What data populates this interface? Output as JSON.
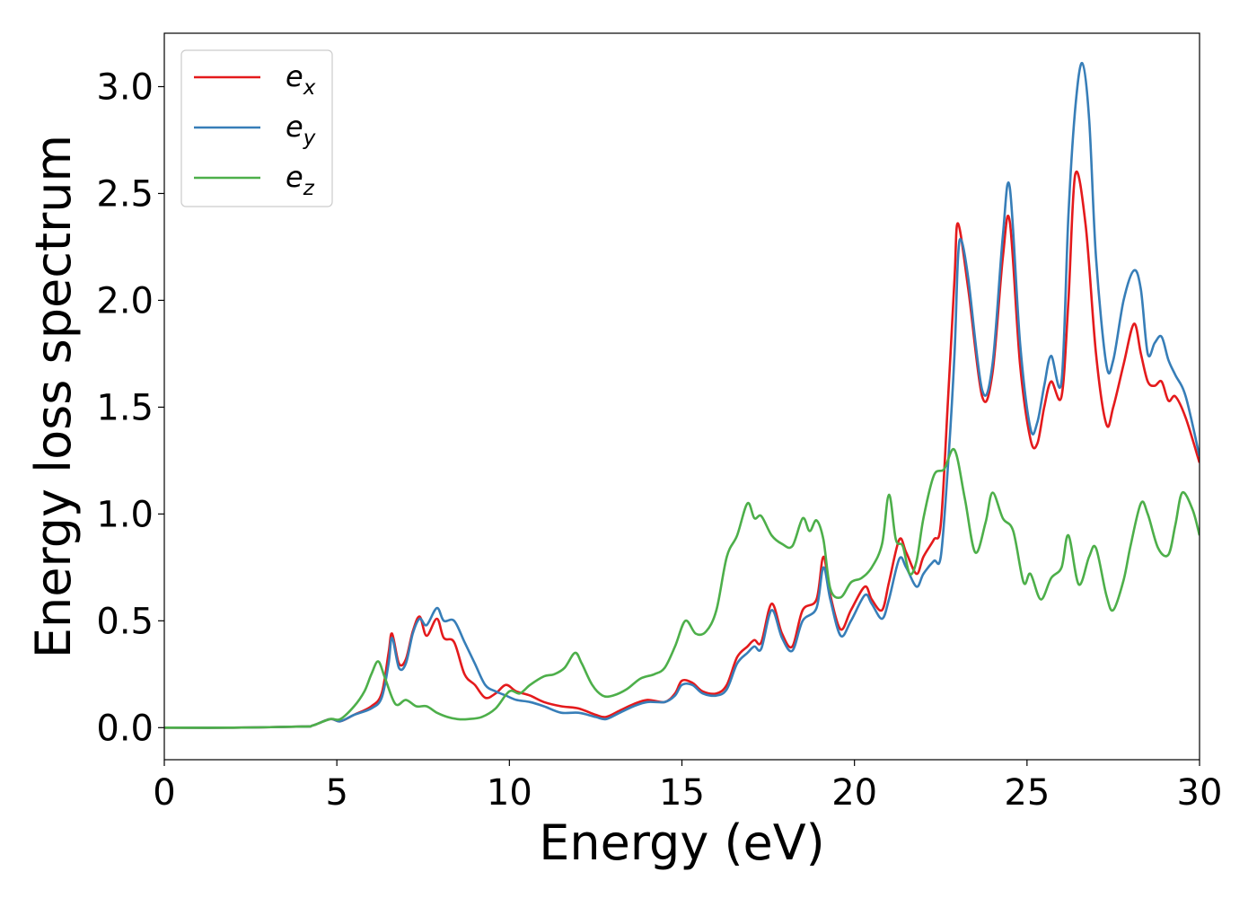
{
  "chart_data": {
    "type": "line",
    "title": "",
    "xlabel": "Energy (eV)",
    "ylabel": "Energy loss spectrum",
    "xlim": [
      0,
      30
    ],
    "ylim": [
      -0.15,
      3.25
    ],
    "xticks": [
      "0",
      "5",
      "10",
      "15",
      "20",
      "25",
      "30"
    ],
    "xtick_values": [
      0,
      5,
      10,
      15,
      20,
      25,
      30
    ],
    "yticks": [
      "0.0",
      "0.5",
      "1.0",
      "1.5",
      "2.0",
      "2.5",
      "3.0"
    ],
    "ytick_values": [
      0,
      0.5,
      1.0,
      1.5,
      2.0,
      2.5,
      3.0
    ],
    "grid": false,
    "legend_position": "top-left",
    "series": [
      {
        "name": "e_x",
        "legend_base": "e",
        "legend_sub": "x",
        "color": "#e41a1c",
        "x": [
          0,
          2,
          4,
          4.3,
          4.8,
          5.1,
          5.5,
          6.0,
          6.3,
          6.5,
          6.6,
          6.8,
          7.0,
          7.2,
          7.4,
          7.6,
          7.9,
          8.1,
          8.4,
          8.7,
          9.0,
          9.3,
          9.6,
          9.9,
          10.2,
          10.6,
          11.0,
          11.5,
          12.0,
          12.5,
          12.8,
          13.2,
          13.6,
          14.0,
          14.5,
          14.8,
          15.0,
          15.3,
          15.6,
          16.0,
          16.3,
          16.6,
          16.9,
          17.1,
          17.3,
          17.6,
          17.9,
          18.2,
          18.5,
          18.9,
          19.1,
          19.3,
          19.6,
          19.9,
          20.3,
          20.5,
          20.8,
          21.0,
          21.3,
          21.5,
          21.8,
          22.0,
          22.3,
          22.5,
          22.7,
          22.9,
          23.0,
          23.3,
          23.7,
          24.0,
          24.3,
          24.5,
          24.8,
          25.1,
          25.3,
          25.5,
          25.7,
          26.0,
          26.2,
          26.4,
          26.7,
          27.0,
          27.3,
          27.5,
          27.8,
          28.1,
          28.3,
          28.5,
          28.7,
          28.9,
          29.1,
          29.3,
          29.6,
          30.0
        ],
        "y": [
          0.0,
          0.0,
          0.005,
          0.01,
          0.04,
          0.03,
          0.06,
          0.1,
          0.16,
          0.35,
          0.44,
          0.3,
          0.32,
          0.45,
          0.52,
          0.43,
          0.51,
          0.42,
          0.4,
          0.25,
          0.2,
          0.14,
          0.16,
          0.2,
          0.17,
          0.15,
          0.12,
          0.1,
          0.09,
          0.06,
          0.05,
          0.08,
          0.11,
          0.13,
          0.12,
          0.16,
          0.22,
          0.21,
          0.17,
          0.16,
          0.2,
          0.33,
          0.38,
          0.41,
          0.4,
          0.58,
          0.44,
          0.38,
          0.55,
          0.6,
          0.8,
          0.62,
          0.46,
          0.55,
          0.66,
          0.6,
          0.55,
          0.68,
          0.88,
          0.82,
          0.72,
          0.8,
          0.88,
          0.95,
          1.5,
          2.1,
          2.36,
          2.05,
          1.55,
          1.66,
          2.2,
          2.37,
          1.7,
          1.35,
          1.33,
          1.5,
          1.62,
          1.55,
          2.0,
          2.59,
          2.35,
          1.75,
          1.42,
          1.5,
          1.7,
          1.89,
          1.75,
          1.62,
          1.6,
          1.62,
          1.53,
          1.55,
          1.45,
          1.24
        ]
      },
      {
        "name": "e_y",
        "legend_base": "e",
        "legend_sub": "y",
        "color": "#377eb8",
        "x": [
          0,
          2,
          4,
          4.3,
          4.8,
          5.1,
          5.5,
          6.0,
          6.3,
          6.5,
          6.6,
          6.8,
          7.0,
          7.2,
          7.4,
          7.6,
          7.9,
          8.1,
          8.4,
          8.7,
          9.0,
          9.3,
          9.6,
          9.9,
          10.2,
          10.6,
          11.0,
          11.5,
          12.0,
          12.5,
          12.8,
          13.2,
          13.6,
          14.0,
          14.5,
          14.8,
          15.0,
          15.3,
          15.6,
          16.0,
          16.3,
          16.6,
          16.9,
          17.1,
          17.3,
          17.6,
          17.9,
          18.2,
          18.5,
          18.9,
          19.1,
          19.3,
          19.6,
          19.9,
          20.3,
          20.5,
          20.8,
          21.0,
          21.3,
          21.5,
          21.8,
          22.0,
          22.3,
          22.5,
          22.7,
          22.9,
          23.0,
          23.1,
          23.3,
          23.7,
          24.0,
          24.3,
          24.5,
          24.8,
          25.1,
          25.3,
          25.5,
          25.7,
          26.0,
          26.2,
          26.4,
          26.6,
          26.8,
          27.0,
          27.3,
          27.5,
          27.8,
          28.1,
          28.3,
          28.5,
          28.7,
          28.9,
          29.1,
          29.3,
          29.6,
          30.0
        ],
        "y": [
          0.0,
          0.0,
          0.005,
          0.01,
          0.04,
          0.03,
          0.06,
          0.09,
          0.14,
          0.3,
          0.42,
          0.28,
          0.3,
          0.44,
          0.51,
          0.48,
          0.56,
          0.5,
          0.5,
          0.4,
          0.3,
          0.2,
          0.17,
          0.15,
          0.13,
          0.12,
          0.1,
          0.07,
          0.07,
          0.05,
          0.04,
          0.07,
          0.1,
          0.12,
          0.12,
          0.15,
          0.2,
          0.2,
          0.16,
          0.15,
          0.18,
          0.3,
          0.35,
          0.38,
          0.37,
          0.55,
          0.42,
          0.36,
          0.5,
          0.56,
          0.75,
          0.6,
          0.43,
          0.5,
          0.62,
          0.58,
          0.51,
          0.6,
          0.79,
          0.75,
          0.66,
          0.72,
          0.78,
          0.8,
          1.2,
          1.75,
          2.2,
          2.28,
          2.1,
          1.58,
          1.7,
          2.3,
          2.53,
          1.8,
          1.4,
          1.43,
          1.6,
          1.74,
          1.62,
          2.4,
          2.9,
          3.11,
          2.85,
          2.2,
          1.7,
          1.72,
          2.0,
          2.14,
          2.05,
          1.75,
          1.8,
          1.83,
          1.72,
          1.65,
          1.55,
          1.27
        ]
      },
      {
        "name": "e_z",
        "legend_base": "e",
        "legend_sub": "z",
        "color": "#4daf4a",
        "x": [
          0,
          2,
          4,
          4.3,
          4.8,
          5.1,
          5.5,
          5.8,
          6.0,
          6.2,
          6.4,
          6.7,
          7.0,
          7.3,
          7.6,
          7.9,
          8.2,
          8.5,
          8.8,
          9.2,
          9.6,
          10.0,
          10.3,
          10.6,
          11.0,
          11.3,
          11.6,
          11.9,
          12.1,
          12.4,
          12.7,
          13.0,
          13.4,
          13.8,
          14.2,
          14.5,
          14.8,
          15.1,
          15.4,
          15.7,
          16.0,
          16.3,
          16.6,
          16.9,
          17.1,
          17.3,
          17.6,
          17.9,
          18.2,
          18.5,
          18.7,
          18.9,
          19.1,
          19.3,
          19.6,
          19.9,
          20.2,
          20.5,
          20.8,
          21.0,
          21.2,
          21.4,
          21.6,
          21.8,
          22.0,
          22.3,
          22.6,
          22.9,
          23.2,
          23.5,
          23.8,
          24.0,
          24.3,
          24.6,
          24.9,
          25.1,
          25.4,
          25.7,
          26.0,
          26.2,
          26.5,
          26.8,
          27.0,
          27.3,
          27.5,
          27.8,
          28.0,
          28.3,
          28.5,
          28.8,
          29.1,
          29.3,
          29.5,
          29.8,
          30.0
        ],
        "y": [
          0.0,
          0.0,
          0.005,
          0.01,
          0.04,
          0.04,
          0.1,
          0.17,
          0.25,
          0.31,
          0.23,
          0.11,
          0.13,
          0.1,
          0.1,
          0.07,
          0.05,
          0.04,
          0.04,
          0.05,
          0.09,
          0.17,
          0.16,
          0.2,
          0.24,
          0.25,
          0.28,
          0.35,
          0.3,
          0.2,
          0.15,
          0.15,
          0.18,
          0.23,
          0.25,
          0.28,
          0.38,
          0.5,
          0.44,
          0.45,
          0.55,
          0.8,
          0.9,
          1.05,
          0.98,
          0.99,
          0.9,
          0.86,
          0.85,
          0.98,
          0.92,
          0.97,
          0.88,
          0.65,
          0.61,
          0.68,
          0.7,
          0.75,
          0.86,
          1.09,
          0.88,
          0.85,
          0.72,
          0.78,
          0.98,
          1.18,
          1.21,
          1.3,
          1.07,
          0.82,
          0.96,
          1.1,
          0.98,
          0.92,
          0.68,
          0.72,
          0.6,
          0.7,
          0.75,
          0.9,
          0.67,
          0.8,
          0.84,
          0.62,
          0.55,
          0.69,
          0.85,
          1.05,
          1.0,
          0.84,
          0.81,
          0.95,
          1.1,
          1.02,
          0.9
        ]
      }
    ]
  }
}
